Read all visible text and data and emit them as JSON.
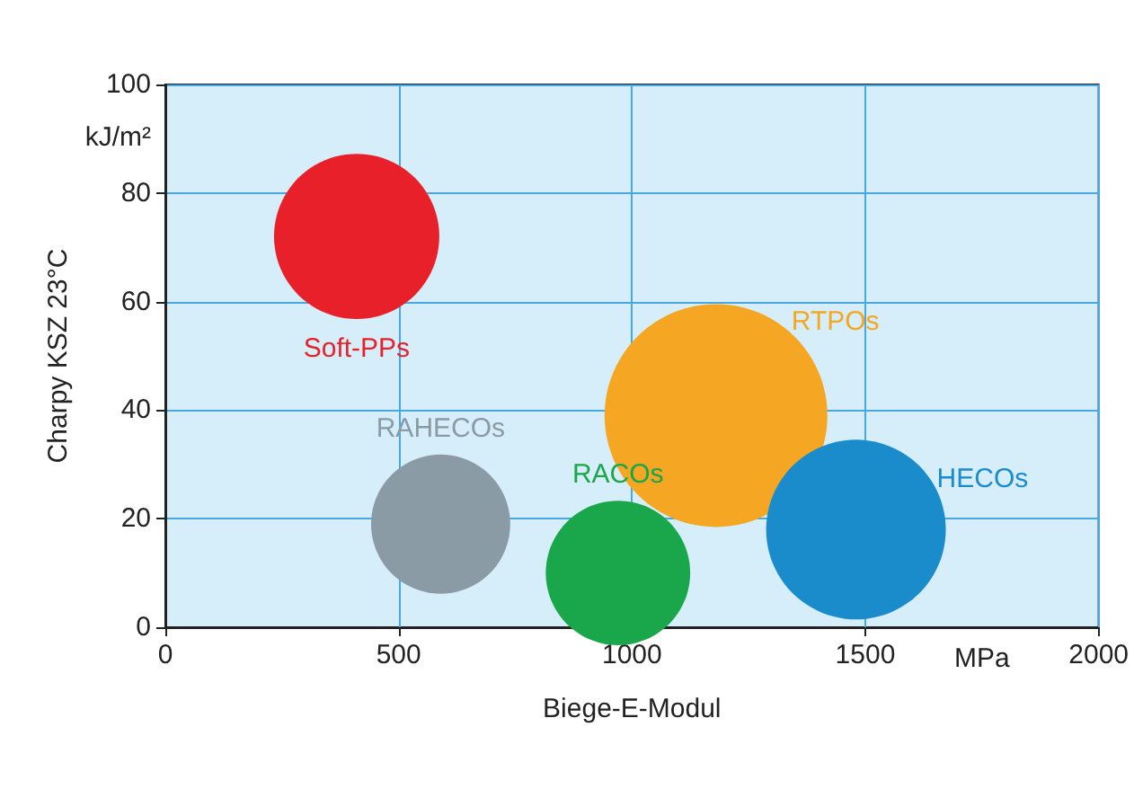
{
  "chart_data": {
    "type": "bubble",
    "xlabel": "Biege-E-Modul",
    "ylabel": "Charpy KSZ 23°C",
    "annotations": [
      "MPa",
      "kJ/m²"
    ],
    "xlim": [
      0,
      2000
    ],
    "xticks": [
      0,
      500,
      1000,
      1500,
      2000
    ],
    "ylim": [
      0,
      100
    ],
    "yticks": [
      0,
      20,
      40,
      60,
      80,
      100
    ],
    "grid": true,
    "legend": false,
    "series": [
      {
        "name": "Soft-PPs",
        "color": "#e8202a",
        "x": [
          410
        ],
        "values": [
          72
        ],
        "sizes": [
          0.55
        ]
      },
      {
        "name": "RTPOs",
        "color": "#f5a623",
        "x": [
          1180
        ],
        "values": [
          39
        ],
        "sizes": [
          1
        ]
      },
      {
        "name": "HECOs",
        "color": "#1a8ccc",
        "x": [
          1480
        ],
        "values": [
          18
        ],
        "sizes": [
          0.65
        ]
      },
      {
        "name": "RAHECOs",
        "color": "#8a9ba5",
        "x": [
          590
        ],
        "values": [
          19
        ],
        "sizes": [
          0.39
        ]
      },
      {
        "name": "RACOs",
        "color": "#1aa64a",
        "x": [
          970
        ],
        "values": [
          10
        ],
        "sizes": [
          0.42
        ]
      }
    ]
  }
}
